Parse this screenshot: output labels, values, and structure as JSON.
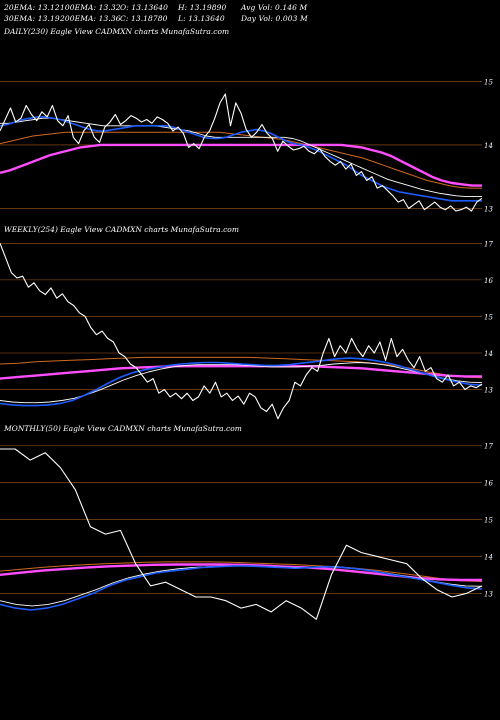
{
  "header": {
    "row1": [
      "20EMA: 13.12",
      "100EMA: 13.32",
      "O: 13.13640",
      "H: 13.19890",
      "Avg Vol: 0.146  M"
    ],
    "row2": [
      "30EMA: 13.19",
      "200EMA: 13.36",
      "C: 13.18780",
      "L: 13.13640",
      "Day Vol: 0.003 M"
    ]
  },
  "colors": {
    "background": "#000000",
    "price": "#ffffff",
    "ema_short": "#1e5cff",
    "ema_mid": "#ffffff",
    "ema_long": "#ff4dff",
    "ema_orange": "#d2691e",
    "grid": "#a05a1e"
  },
  "chart_data": [
    {
      "type": "line",
      "title": "DAILY(230) Eagle  View  CADMXN  charts MunafaSutra.com",
      "yticks": [
        13,
        14,
        15
      ],
      "ylim": [
        12.85,
        15.65
      ],
      "series": [
        {
          "role": "price",
          "values": [
            14.22,
            14.4,
            14.58,
            14.36,
            14.42,
            14.62,
            14.48,
            14.38,
            14.52,
            14.44,
            14.62,
            14.38,
            14.3,
            14.46,
            14.12,
            14.02,
            14.22,
            14.32,
            14.12,
            14.04,
            14.28,
            14.36,
            14.48,
            14.32,
            14.38,
            14.46,
            14.42,
            14.36,
            14.4,
            14.34,
            14.44,
            14.4,
            14.34,
            14.22,
            14.28,
            14.18,
            13.96,
            14.02,
            13.94,
            14.12,
            14.22,
            14.42,
            14.66,
            14.8,
            14.3,
            14.66,
            14.5,
            14.24,
            14.12,
            14.2,
            14.32,
            14.18,
            14.1,
            13.9,
            14.06,
            13.98,
            13.92,
            13.94,
            13.98,
            13.9,
            13.86,
            13.94,
            13.82,
            13.74,
            13.68,
            13.74,
            13.62,
            13.7,
            13.52,
            13.58,
            13.44,
            13.5,
            13.32,
            13.36,
            13.28,
            13.2,
            13.1,
            13.14,
            13.0,
            13.06,
            13.12,
            12.98,
            13.04,
            13.1,
            13.02,
            12.98,
            13.04,
            12.96,
            12.98,
            13.02,
            12.96,
            13.1,
            13.16
          ]
        },
        {
          "role": "ema_short",
          "values": [
            14.3,
            14.32,
            14.36,
            14.4,
            14.42,
            14.44,
            14.44,
            14.42,
            14.4,
            14.36,
            14.32,
            14.28,
            14.24,
            14.22,
            14.22,
            14.24,
            14.26,
            14.28,
            14.3,
            14.3,
            14.3,
            14.3,
            14.3,
            14.28,
            14.24,
            14.2,
            14.16,
            14.12,
            14.1,
            14.1,
            14.12,
            14.16,
            14.2,
            14.22,
            14.24,
            14.22,
            14.18,
            14.12,
            14.06,
            14.02,
            14.0,
            13.96,
            13.92,
            13.86,
            13.8,
            13.74,
            13.68,
            13.6,
            13.52,
            13.46,
            13.4,
            13.34,
            13.3,
            13.26,
            13.24,
            13.22,
            13.2,
            13.18,
            13.16,
            13.14,
            13.12,
            13.12,
            13.12,
            13.12,
            13.12
          ]
        },
        {
          "role": "ema_mid",
          "values": [
            14.34,
            14.34,
            14.36,
            14.38,
            14.4,
            14.42,
            14.42,
            14.4,
            14.38,
            14.36,
            14.34,
            14.32,
            14.3,
            14.3,
            14.3,
            14.3,
            14.3,
            14.3,
            14.3,
            14.28,
            14.26,
            14.24,
            14.22,
            14.18,
            14.14,
            14.12,
            14.12,
            14.12,
            14.12,
            14.12,
            14.12,
            14.12,
            14.12,
            14.12,
            14.1,
            14.06,
            14.0,
            13.94,
            13.88,
            13.82,
            13.76,
            13.7,
            13.64,
            13.58,
            13.52,
            13.46,
            13.42,
            13.38,
            13.34,
            13.3,
            13.27,
            13.24,
            13.22,
            13.2,
            13.19,
            13.19,
            13.19
          ]
        },
        {
          "role": "ema_orange",
          "values": [
            14.02,
            14.06,
            14.1,
            14.14,
            14.16,
            14.18,
            14.2,
            14.2,
            14.2,
            14.2,
            14.2,
            14.2,
            14.2,
            14.2,
            14.2,
            14.2,
            14.2,
            14.2,
            14.2,
            14.2,
            14.2,
            14.18,
            14.16,
            14.14,
            14.12,
            14.1,
            14.08,
            14.04,
            14.0,
            13.96,
            13.92,
            13.88,
            13.84,
            13.8,
            13.74,
            13.68,
            13.62,
            13.56,
            13.5,
            13.44,
            13.4,
            13.36,
            13.33,
            13.32,
            13.32
          ]
        },
        {
          "role": "ema_long",
          "values": [
            13.56,
            13.6,
            13.66,
            13.72,
            13.78,
            13.84,
            13.88,
            13.92,
            13.96,
            13.98,
            14.0,
            14.0,
            14.0,
            14.0,
            14.0,
            14.0,
            14.0,
            14.0,
            14.0,
            14.0,
            14.0,
            14.0,
            14.0,
            14.0,
            14.0,
            14.0,
            14.0,
            14.0,
            14.0,
            14.0,
            14.0,
            14.0,
            14.0,
            14.0,
            14.0,
            13.98,
            13.96,
            13.92,
            13.88,
            13.82,
            13.74,
            13.66,
            13.58,
            13.5,
            13.44,
            13.4,
            13.38,
            13.36,
            13.36
          ]
        }
      ]
    },
    {
      "type": "line",
      "title": "WEEKLY(254) Eagle  View  CADMXN  charts MunafaSutra.com",
      "yticks": [
        13,
        14,
        15,
        16,
        17
      ],
      "ylim": [
        12.55,
        17.2
      ],
      "series": [
        {
          "role": "price",
          "values": [
            17.0,
            16.6,
            16.2,
            16.05,
            16.1,
            15.8,
            15.92,
            15.7,
            15.6,
            15.78,
            15.5,
            15.62,
            15.4,
            15.3,
            15.1,
            15.0,
            14.7,
            14.5,
            14.6,
            14.4,
            14.3,
            14.0,
            13.9,
            13.7,
            13.6,
            13.4,
            13.2,
            13.3,
            12.9,
            13.0,
            12.8,
            12.9,
            12.75,
            12.9,
            12.7,
            12.8,
            13.1,
            12.9,
            13.2,
            12.8,
            12.9,
            12.7,
            12.82,
            12.6,
            12.9,
            12.8,
            12.5,
            12.4,
            12.6,
            12.2,
            12.5,
            12.7,
            13.2,
            13.1,
            13.4,
            13.6,
            13.5,
            14.0,
            14.4,
            13.9,
            14.2,
            14.0,
            14.4,
            14.1,
            13.9,
            14.2,
            14.0,
            14.3,
            13.8,
            14.4,
            13.9,
            14.1,
            13.8,
            13.6,
            13.9,
            13.5,
            13.6,
            13.3,
            13.2,
            13.4,
            13.1,
            13.2,
            13.0,
            13.1,
            13.05,
            13.15
          ]
        },
        {
          "role": "ema_short",
          "values": [
            12.62,
            12.58,
            12.56,
            12.56,
            12.58,
            12.62,
            12.7,
            12.84,
            13.0,
            13.18,
            13.34,
            13.46,
            13.54,
            13.6,
            13.66,
            13.7,
            13.72,
            13.74,
            13.74,
            13.72,
            13.7,
            13.68,
            13.66,
            13.66,
            13.68,
            13.72,
            13.76,
            13.8,
            13.84,
            13.86,
            13.84,
            13.8,
            13.74,
            13.66,
            13.56,
            13.46,
            13.36,
            13.28,
            13.2,
            13.14,
            13.12
          ]
        },
        {
          "role": "ema_mid",
          "values": [
            12.7,
            12.66,
            12.64,
            12.64,
            12.66,
            12.7,
            12.76,
            12.86,
            12.98,
            13.12,
            13.26,
            13.38,
            13.48,
            13.56,
            13.62,
            13.66,
            13.68,
            13.68,
            13.68,
            13.68,
            13.66,
            13.64,
            13.62,
            13.62,
            13.62,
            13.64,
            13.66,
            13.7,
            13.72,
            13.74,
            13.72,
            13.68,
            13.62,
            13.54,
            13.46,
            13.38,
            13.3,
            13.24,
            13.2,
            13.19
          ]
        },
        {
          "role": "ema_orange",
          "values": [
            13.7,
            13.72,
            13.76,
            13.78,
            13.8,
            13.82,
            13.84,
            13.86,
            13.88,
            13.88,
            13.88,
            13.88,
            13.88,
            13.88,
            13.88,
            13.86,
            13.84,
            13.82,
            13.8,
            13.78,
            13.76,
            13.72,
            13.66,
            13.58,
            13.48,
            13.4,
            13.34,
            13.32
          ]
        },
        {
          "role": "ema_long",
          "values": [
            13.3,
            13.34,
            13.38,
            13.42,
            13.46,
            13.5,
            13.54,
            13.58,
            13.6,
            13.62,
            13.64,
            13.64,
            13.64,
            13.64,
            13.64,
            13.64,
            13.64,
            13.64,
            13.64,
            13.62,
            13.6,
            13.58,
            13.54,
            13.5,
            13.46,
            13.42,
            13.38,
            13.36,
            13.36
          ]
        }
      ]
    },
    {
      "type": "line",
      "title": "MONTHLY(50) Eagle  View  CADMXN  charts MunafaSutra.com",
      "yticks": [
        13,
        14,
        15,
        16,
        17
      ],
      "ylim": [
        12.55,
        17.25
      ],
      "series": [
        {
          "role": "price",
          "values": [
            16.9,
            16.9,
            16.6,
            16.8,
            16.4,
            15.8,
            14.8,
            14.6,
            14.7,
            13.8,
            13.2,
            13.3,
            13.1,
            12.9,
            12.9,
            12.8,
            12.6,
            12.7,
            12.5,
            12.8,
            12.6,
            12.3,
            13.5,
            14.3,
            14.1,
            14.0,
            13.9,
            13.8,
            13.4,
            13.1,
            12.9,
            13.0,
            13.2
          ]
        },
        {
          "role": "ema_short",
          "values": [
            12.7,
            12.6,
            12.55,
            12.6,
            12.7,
            12.85,
            13.0,
            13.2,
            13.35,
            13.45,
            13.55,
            13.6,
            13.65,
            13.7,
            13.72,
            13.74,
            13.74,
            13.72,
            13.7,
            13.68,
            13.7,
            13.72,
            13.7,
            13.66,
            13.6,
            13.52,
            13.45,
            13.38,
            13.3,
            13.22,
            13.15,
            13.12
          ]
        },
        {
          "role": "ema_mid",
          "values": [
            12.8,
            12.7,
            12.66,
            12.7,
            12.8,
            12.95,
            13.1,
            13.28,
            13.42,
            13.52,
            13.6,
            13.66,
            13.7,
            13.72,
            13.74,
            13.74,
            13.73,
            13.72,
            13.7,
            13.7,
            13.72,
            13.72,
            13.68,
            13.62,
            13.55,
            13.48,
            13.4,
            13.32,
            13.25,
            13.2,
            13.19
          ]
        },
        {
          "role": "ema_orange",
          "values": [
            13.6,
            13.65,
            13.7,
            13.74,
            13.77,
            13.8,
            13.82,
            13.84,
            13.85,
            13.85,
            13.85,
            13.84,
            13.82,
            13.8,
            13.78,
            13.75,
            13.72,
            13.68,
            13.62,
            13.55,
            13.48,
            13.4,
            13.34,
            13.32
          ]
        },
        {
          "role": "ema_long",
          "values": [
            13.5,
            13.56,
            13.62,
            13.66,
            13.7,
            13.73,
            13.75,
            13.77,
            13.78,
            13.78,
            13.78,
            13.77,
            13.75,
            13.72,
            13.7,
            13.66,
            13.6,
            13.54,
            13.48,
            13.42,
            13.38,
            13.36,
            13.36
          ]
        }
      ]
    }
  ]
}
